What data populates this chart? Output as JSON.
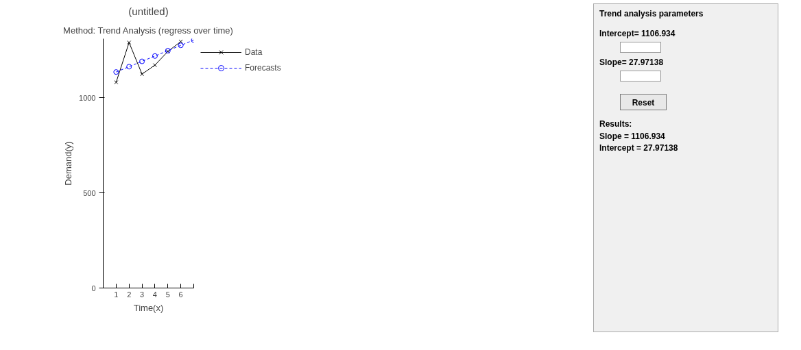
{
  "chart_data": {
    "type": "line",
    "title": "(untitled)",
    "subtitle": "Method: Trend Analysis (regress over time)",
    "xlabel": "Time(x)",
    "ylabel": "Demand(y)",
    "x": [
      1,
      2,
      3,
      4,
      5,
      6
    ],
    "series": [
      {
        "name": "Data",
        "color": "#000000",
        "values": [
          1081,
          1290,
          1124,
          1171,
          1243,
          1295
        ],
        "marker": "cross",
        "line_style": "solid"
      },
      {
        "name": "Forecasts",
        "color": "#0000ff",
        "x": [
          1,
          2,
          3,
          4,
          5,
          6,
          7
        ],
        "values": [
          1135,
          1163,
          1191,
          1219,
          1247,
          1275,
          1303
        ],
        "marker": "circle",
        "line_style": "dashed"
      }
    ],
    "xlim": [
      0,
      7
    ],
    "xticks": [
      1,
      2,
      3,
      4,
      5,
      6,
      {
        "value": 7,
        "label": null
      }
    ],
    "ylim": [
      0,
      1310
    ],
    "yticks": [
      0,
      500,
      1000
    ],
    "grid": false,
    "legend": "right",
    "annotations": [
      "Trend analysis parameters",
      "Intercept= 1106.934",
      "Slope= 27.97138",
      "Reset",
      "Results:",
      "Slope = 1106.934",
      "Intercept = 27.97138"
    ]
  }
}
